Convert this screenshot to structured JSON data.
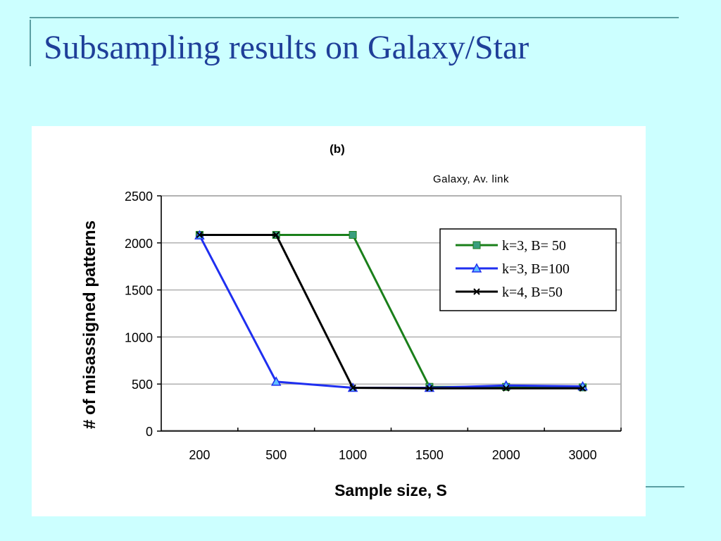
{
  "slide": {
    "title": "Subsampling results on Galaxy/Star"
  },
  "chart_data": {
    "type": "line",
    "title": "(b)",
    "subtitle": "Galaxy, Av. link",
    "xlabel": "Sample size, S",
    "ylabel": "# of misassigned patterns",
    "categories": [
      "200",
      "500",
      "1000",
      "1500",
      "2000",
      "3000"
    ],
    "ylim": [
      0,
      2500
    ],
    "yticks": [
      0,
      500,
      1000,
      1500,
      2000,
      2500
    ],
    "grid": "horizontal",
    "legend_position": "right",
    "series": [
      {
        "name": "k=3, B= 50",
        "color": "#1a7f1a",
        "marker": "square",
        "marker_color": "#3a9e7e",
        "values": [
          2085,
          2085,
          2085,
          470,
          470,
          465
        ]
      },
      {
        "name": "k=3, B=100",
        "color": "#1f2ff0",
        "marker": "triangle",
        "marker_color": "#60c0ff",
        "values": [
          2080,
          525,
          460,
          460,
          485,
          475
        ]
      },
      {
        "name": "k=4, B=50",
        "color": "#000000",
        "marker": "x",
        "marker_color": "#000000",
        "values": [
          2085,
          2085,
          460,
          455,
          455,
          455
        ]
      }
    ]
  }
}
